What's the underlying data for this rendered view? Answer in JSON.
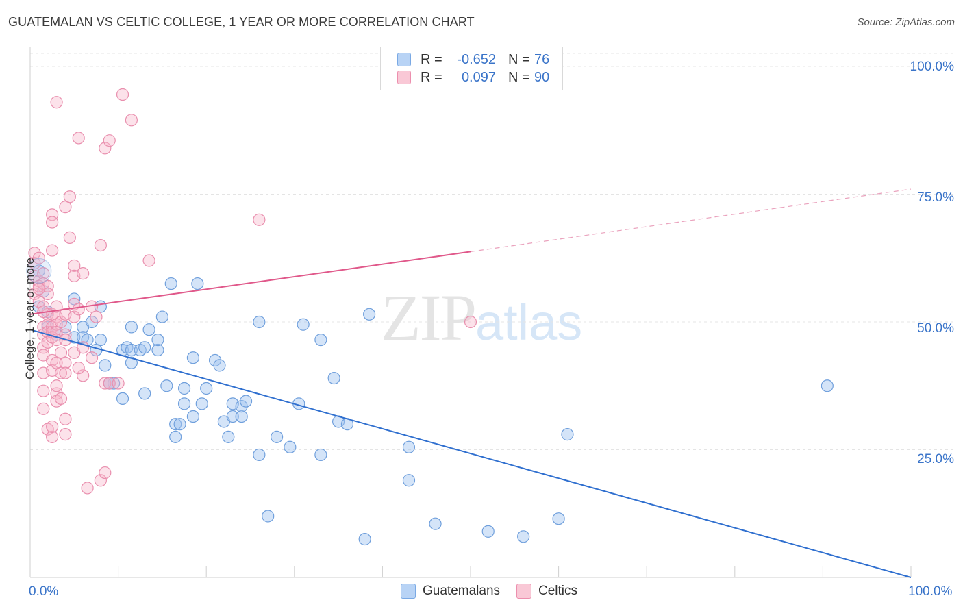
{
  "title": "GUATEMALAN VS CELTIC COLLEGE, 1 YEAR OR MORE CORRELATION CHART",
  "source": "Source: ZipAtlas.com",
  "watermark": {
    "zip": "ZIP",
    "atlas": "atlas"
  },
  "legend": {
    "series": [
      {
        "name": "Guatemalans",
        "r_label": "R =",
        "r_value": "-0.652",
        "n_label": "N =",
        "n_value": "76",
        "color": "#3a74c9",
        "fill": "#b8d3f5"
      },
      {
        "name": "Celtics",
        "r_label": "R =",
        "r_value": "0.097",
        "n_label": "N =",
        "n_value": "90",
        "color": "#e8729a",
        "fill": "#f9c8d6"
      }
    ]
  },
  "axes": {
    "x_min_label": "0.0%",
    "x_max_label": "100.0%",
    "y_title": "College, 1 year or more",
    "y_ticks": [
      "100.0%",
      "75.0%",
      "50.0%",
      "25.0%"
    ]
  },
  "chart_data": {
    "type": "scatter",
    "title": "GUATEMALAN VS CELTIC COLLEGE, 1 YEAR OR MORE CORRELATION CHART",
    "xlabel": "",
    "ylabel": "College, 1 year or more",
    "xlim": [
      0,
      100
    ],
    "ylim": [
      0,
      100
    ],
    "grid": true,
    "series": [
      {
        "name": "Guatemalans",
        "color": "#3a74c9",
        "trend": {
          "x0": 0,
          "y0": 48.5,
          "x1": 100,
          "y1": 0,
          "dashed_from": null
        },
        "points": [
          [
            1,
            60
          ],
          [
            1,
            53
          ],
          [
            2,
            49
          ],
          [
            3,
            47.5
          ],
          [
            4,
            49
          ],
          [
            5,
            54.5
          ],
          [
            5,
            47
          ],
          [
            6,
            49
          ],
          [
            6,
            47
          ],
          [
            7,
            50
          ],
          [
            6.5,
            46.5
          ],
          [
            7.5,
            44.5
          ],
          [
            8,
            53
          ],
          [
            8,
            46.5
          ],
          [
            8.5,
            41.5
          ],
          [
            9,
            38
          ],
          [
            9.5,
            38
          ],
          [
            10.5,
            44.5
          ],
          [
            11,
            45
          ],
          [
            11.5,
            44.5
          ],
          [
            10.5,
            35
          ],
          [
            11.5,
            42
          ],
          [
            11.5,
            49
          ],
          [
            12.5,
            44.5
          ],
          [
            13,
            45
          ],
          [
            13.5,
            48.5
          ],
          [
            13,
            36
          ],
          [
            14.5,
            44.5
          ],
          [
            14.5,
            46.5
          ],
          [
            15,
            51
          ],
          [
            15.5,
            37.5
          ],
          [
            16,
            57.5
          ],
          [
            16.5,
            30
          ],
          [
            16.5,
            27.5
          ],
          [
            17,
            30
          ],
          [
            17.5,
            37
          ],
          [
            17.5,
            34
          ],
          [
            18.5,
            43
          ],
          [
            18.5,
            31.5
          ],
          [
            19,
            57.5
          ],
          [
            19.5,
            34
          ],
          [
            20,
            37
          ],
          [
            21,
            42.5
          ],
          [
            21.5,
            41.5
          ],
          [
            22,
            30.5
          ],
          [
            22.5,
            27.5
          ],
          [
            23,
            34
          ],
          [
            23,
            31.5
          ],
          [
            24,
            31.5
          ],
          [
            24,
            33.5
          ],
          [
            24.5,
            34.5
          ],
          [
            26,
            50
          ],
          [
            26,
            24
          ],
          [
            27,
            12
          ],
          [
            28,
            27.5
          ],
          [
            29.5,
            25.5
          ],
          [
            30.5,
            34
          ],
          [
            31,
            49.5
          ],
          [
            33,
            46.5
          ],
          [
            33,
            24
          ],
          [
            34.5,
            39
          ],
          [
            35,
            30.5
          ],
          [
            36,
            30
          ],
          [
            38,
            7.5
          ],
          [
            38.5,
            51.5
          ],
          [
            43,
            25.5
          ],
          [
            43,
            19
          ],
          [
            46,
            10.5
          ],
          [
            52,
            9
          ],
          [
            56,
            8
          ],
          [
            60,
            11.5
          ],
          [
            61,
            28
          ],
          [
            90.5,
            37.5
          ],
          [
            1.5,
            56
          ],
          [
            2,
            52
          ],
          [
            9,
            38
          ]
        ]
      },
      {
        "name": "Celtics",
        "color": "#e8729a",
        "trend": {
          "x0": 0,
          "y0": 51.5,
          "x1": 100,
          "y1": 76,
          "solid_until_x": 50
        },
        "points": [
          [
            0.5,
            63.5
          ],
          [
            0.5,
            61.5
          ],
          [
            0.5,
            59
          ],
          [
            0.5,
            55.5
          ],
          [
            1,
            62.5
          ],
          [
            1,
            58
          ],
          [
            1,
            57
          ],
          [
            1,
            54
          ],
          [
            1.5,
            59.5
          ],
          [
            1.5,
            57.5
          ],
          [
            1.5,
            53
          ],
          [
            1.5,
            49
          ],
          [
            1.5,
            47.5
          ],
          [
            1.5,
            45
          ],
          [
            1.5,
            43.5
          ],
          [
            1.5,
            40
          ],
          [
            1.5,
            36.5
          ],
          [
            1.5,
            33
          ],
          [
            2,
            57
          ],
          [
            2,
            55.5
          ],
          [
            2,
            51.5
          ],
          [
            2,
            49.5
          ],
          [
            2,
            48
          ],
          [
            2,
            46
          ],
          [
            2,
            29
          ],
          [
            2.5,
            71
          ],
          [
            2.5,
            69.5
          ],
          [
            2.5,
            64
          ],
          [
            2.5,
            51.5
          ],
          [
            2.5,
            49
          ],
          [
            2.5,
            48
          ],
          [
            2.5,
            47
          ],
          [
            2.5,
            42.5
          ],
          [
            2.5,
            40.5
          ],
          [
            2.5,
            27.5
          ],
          [
            2.5,
            29.5
          ],
          [
            3,
            93
          ],
          [
            3,
            53
          ],
          [
            3,
            51
          ],
          [
            3,
            49.5
          ],
          [
            3,
            48
          ],
          [
            3,
            46.5
          ],
          [
            3,
            42
          ],
          [
            3,
            34.5
          ],
          [
            3,
            36
          ],
          [
            3.5,
            50
          ],
          [
            3.5,
            44
          ],
          [
            3.5,
            40
          ],
          [
            3.5,
            35
          ],
          [
            4,
            72.5
          ],
          [
            4,
            51.5
          ],
          [
            4,
            47.5
          ],
          [
            4,
            42
          ],
          [
            4,
            40
          ],
          [
            4,
            31
          ],
          [
            4,
            28
          ],
          [
            4.5,
            74.5
          ],
          [
            4.5,
            66.5
          ],
          [
            5,
            61
          ],
          [
            5,
            59
          ],
          [
            5,
            53.5
          ],
          [
            5,
            51
          ],
          [
            5,
            44
          ],
          [
            5.5,
            86
          ],
          [
            5.5,
            52.5
          ],
          [
            6,
            59.5
          ],
          [
            6,
            39.5
          ],
          [
            6.5,
            17.5
          ],
          [
            7,
            53
          ],
          [
            7,
            43
          ],
          [
            8,
            19
          ],
          [
            8,
            65
          ],
          [
            8.5,
            84
          ],
          [
            8.5,
            38
          ],
          [
            8.5,
            20.5
          ],
          [
            9,
            85.5
          ],
          [
            9,
            38
          ],
          [
            10,
            38
          ],
          [
            10.5,
            94.5
          ],
          [
            11.5,
            89.5
          ],
          [
            13.5,
            62
          ],
          [
            26,
            70
          ],
          [
            50,
            50
          ],
          [
            1,
            56.5
          ],
          [
            1.5,
            52
          ],
          [
            3,
            37.5
          ],
          [
            4,
            46.5
          ],
          [
            5.5,
            41
          ],
          [
            6,
            45
          ],
          [
            7.5,
            51
          ]
        ]
      }
    ]
  }
}
